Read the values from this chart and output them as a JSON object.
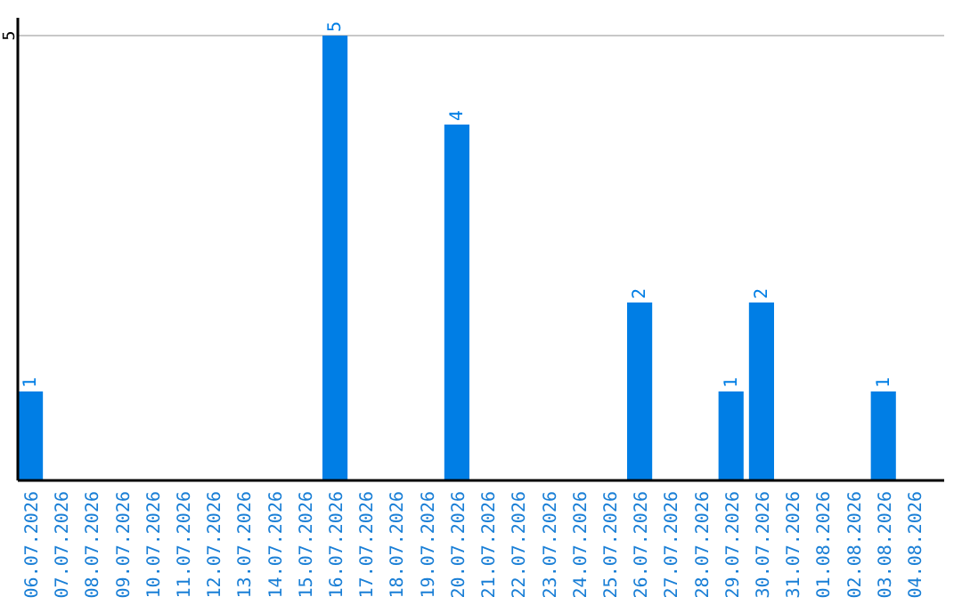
{
  "chart_data": {
    "type": "bar",
    "categories": [
      "06.07.2026",
      "07.07.2026",
      "08.07.2026",
      "09.07.2026",
      "10.07.2026",
      "11.07.2026",
      "12.07.2026",
      "13.07.2026",
      "14.07.2026",
      "15.07.2026",
      "16.07.2026",
      "17.07.2026",
      "18.07.2026",
      "19.07.2026",
      "20.07.2026",
      "21.07.2026",
      "22.07.2026",
      "23.07.2026",
      "24.07.2026",
      "25.07.2026",
      "26.07.2026",
      "27.07.2026",
      "28.07.2026",
      "29.07.2026",
      "30.07.2026",
      "31.07.2026",
      "01.08.2026",
      "02.08.2026",
      "03.08.2026",
      "04.08.2026"
    ],
    "values": [
      1,
      0,
      0,
      0,
      0,
      0,
      0,
      0,
      0,
      0,
      5,
      0,
      0,
      0,
      4,
      0,
      0,
      0,
      0,
      0,
      2,
      0,
      0,
      1,
      2,
      0,
      0,
      0,
      1,
      0
    ],
    "value_labels": [
      "1",
      null,
      null,
      null,
      null,
      null,
      null,
      null,
      null,
      null,
      "5",
      null,
      null,
      null,
      "4",
      null,
      null,
      null,
      null,
      null,
      "2",
      null,
      null,
      "1",
      "2",
      null,
      null,
      null,
      "1",
      null
    ],
    "color": "#007ee5",
    "ylim": [
      0,
      5.2
    ],
    "yticks": [
      5
    ],
    "grid": "y"
  }
}
